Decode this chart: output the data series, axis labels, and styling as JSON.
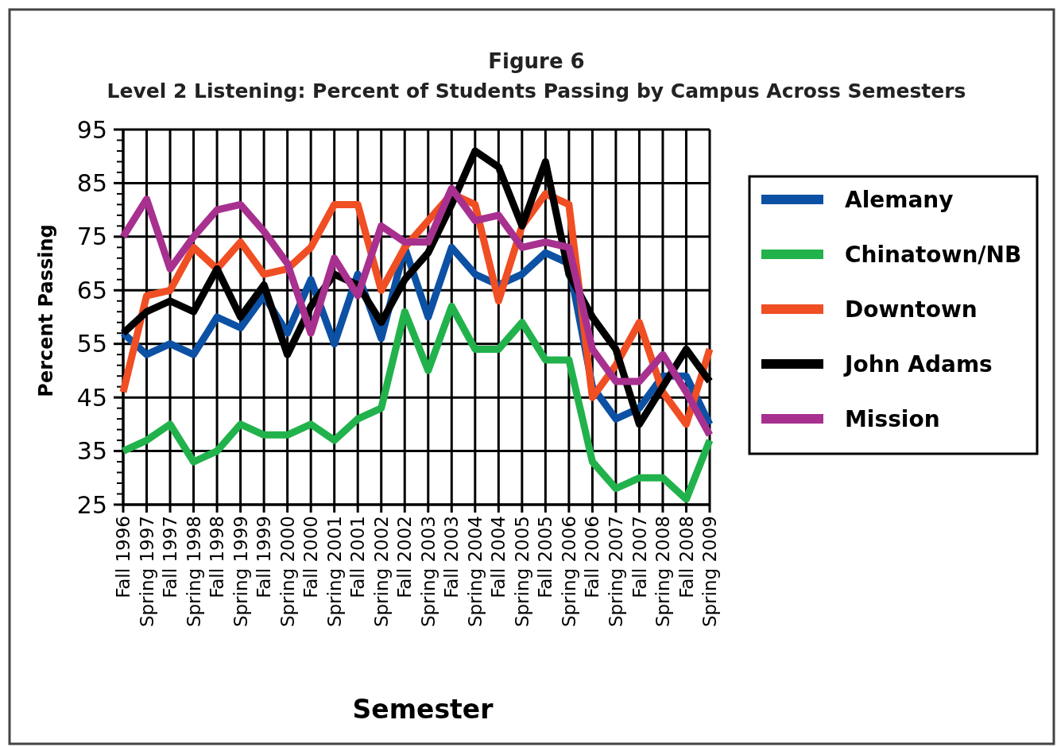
{
  "chart_data": {
    "type": "line",
    "title": "Figure 6",
    "subtitle": "Level 2 Listening: Percent of Students Passing by Campus Across Semesters",
    "xlabel": "Semester",
    "ylabel": "Percent Passing",
    "categories": [
      "Fall 1996",
      "Spring 1997",
      "Fall 1997",
      "Spring 1998",
      "Fall 1998",
      "Spring 1999",
      "Fall 1999",
      "Spring 2000",
      "Fall 2000",
      "Spring 2001",
      "Fall 2001",
      "Spring 2002",
      "Fall 2002",
      "Spring 2003",
      "Fall 2003",
      "Spring 2004",
      "Fall 2004",
      "Spring 2005",
      "Fall 2005",
      "Spring 2006",
      "Fall 2006",
      "Spring 2007",
      "Fall 2007",
      "Spring 2008",
      "Fall 2008",
      "Spring 2009"
    ],
    "series": [
      {
        "name": "Alemany",
        "color": "#0c51a4",
        "values": [
          57,
          53,
          55,
          53,
          60,
          58,
          64,
          57,
          67,
          55,
          68,
          56,
          73,
          60,
          73,
          68,
          66,
          68,
          72,
          70,
          47,
          41,
          43,
          49,
          49,
          40
        ]
      },
      {
        "name": "Chinatown/NB",
        "color": "#22b24c",
        "values": [
          35,
          37,
          40,
          33,
          35,
          40,
          38,
          38,
          40,
          37,
          41,
          43,
          61,
          50,
          62,
          54,
          54,
          59,
          52,
          52,
          33,
          28,
          30,
          30,
          26,
          37
        ]
      },
      {
        "name": "Downtown",
        "color": "#f04e23",
        "values": [
          46,
          64,
          65,
          73,
          69,
          74,
          68,
          69,
          73,
          81,
          81,
          65,
          73,
          78,
          83,
          81,
          63,
          77,
          83,
          81,
          45,
          51,
          59,
          46,
          40,
          54
        ]
      },
      {
        "name": "John Adams",
        "color": "#000000",
        "values": [
          57,
          61,
          63,
          61,
          69,
          60,
          66,
          53,
          62,
          68,
          66,
          59,
          67,
          72,
          81,
          91,
          88,
          77,
          89,
          68,
          60,
          54,
          40,
          47,
          54,
          48
        ]
      },
      {
        "name": "Mission",
        "color": "#a8308f",
        "values": [
          75,
          82,
          69,
          75,
          80,
          81,
          76,
          70,
          57,
          71,
          64,
          77,
          74,
          74,
          84,
          78,
          79,
          73,
          74,
          73,
          54,
          48,
          48,
          53,
          46,
          38
        ]
      }
    ],
    "ylim": [
      25,
      95
    ],
    "yticks": [
      25,
      35,
      45,
      55,
      65,
      75,
      85,
      95
    ],
    "grid": true,
    "legend": "right",
    "marker": "none",
    "line_style": "solid"
  }
}
